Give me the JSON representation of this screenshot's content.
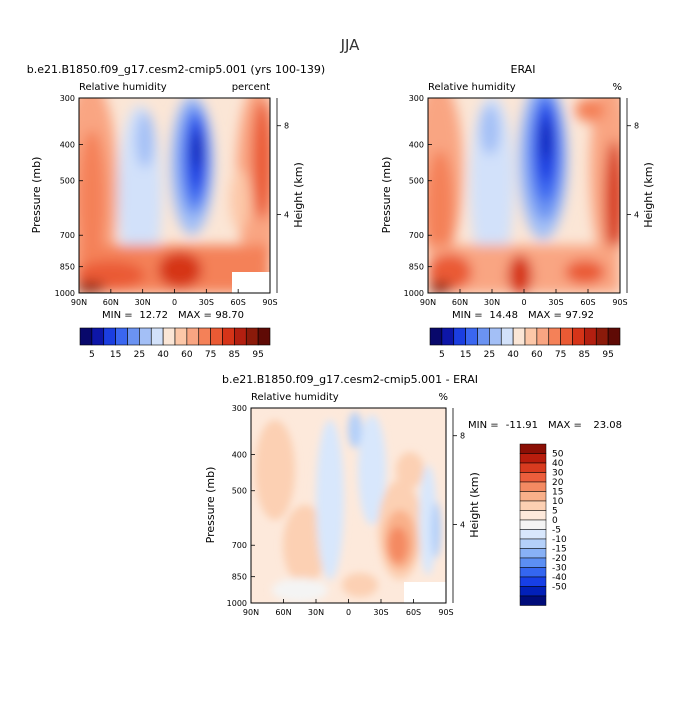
{
  "page": {
    "title": "JJA"
  },
  "colors": {
    "rh_scale": [
      "#08086b",
      "#0d16a8",
      "#1b3ee0",
      "#3a66f0",
      "#6b93f2",
      "#a3bff6",
      "#d2e1fa",
      "#fbe6d6",
      "#fcc7a8",
      "#f9a582",
      "#f48158",
      "#ea5a34",
      "#d63418",
      "#b31f10",
      "#8b1a0a",
      "#5f0a05"
    ],
    "diff_scale": [
      "#000c7a",
      "#0220b8",
      "#173fe6",
      "#3466f0",
      "#5c8ff3",
      "#88b1f6",
      "#b4d0f9",
      "#d8e7fc",
      "#f4f4f4",
      "#fde9db",
      "#fcd0b3",
      "#f9b08a",
      "#f48a62",
      "#ec5e3c",
      "#d83b1f",
      "#b81d0d",
      "#8b0f05"
    ]
  },
  "chart_data": [
    {
      "type": "heatmap",
      "panel": "model",
      "title": "b.e21.B1850.f09_g17.cesm2-cmip5.001 (yrs 100-139)",
      "left_label": "Relative humidity",
      "right_label": "percent",
      "xlabel": "",
      "ylabel": "Pressure (mb)",
      "ylabel_right": "Height (km)",
      "xticks": [
        "90N",
        "60N",
        "30N",
        "0",
        "30S",
        "60S",
        "90S"
      ],
      "yticks": [
        "300",
        "400",
        "500",
        "700",
        "850",
        "1000"
      ],
      "yticks_right": [
        "8",
        "4"
      ],
      "xlim": [
        90,
        -90
      ],
      "ylim": [
        1000,
        300
      ],
      "min_label": "MIN =",
      "min": "12.72",
      "max_label": "MAX =",
      "max": "98.70",
      "levels": [
        "5",
        "15",
        "25",
        "40",
        "60",
        "75",
        "85",
        "95"
      ]
    },
    {
      "type": "heatmap",
      "panel": "obs",
      "title": "ERAI",
      "left_label": "Relative humidity",
      "right_label": "%",
      "xlabel": "",
      "ylabel": "Pressure (mb)",
      "ylabel_right": "Height (km)",
      "xticks": [
        "90N",
        "60N",
        "30N",
        "0",
        "30S",
        "60S",
        "90S"
      ],
      "yticks": [
        "300",
        "400",
        "500",
        "700",
        "850",
        "1000"
      ],
      "yticks_right": [
        "8",
        "4"
      ],
      "xlim": [
        90,
        -90
      ],
      "ylim": [
        1000,
        300
      ],
      "min_label": "MIN =",
      "min": "14.48",
      "max_label": "MAX =",
      "max": "97.92",
      "levels": [
        "5",
        "15",
        "25",
        "40",
        "60",
        "75",
        "85",
        "95"
      ]
    },
    {
      "type": "heatmap",
      "panel": "difference",
      "title": "b.e21.B1850.f09_g17.cesm2-cmip5.001 - ERAI",
      "left_label": "Relative humidity",
      "right_label": "%",
      "xlabel": "",
      "ylabel": "Pressure (mb)",
      "ylabel_right": "Height (km)",
      "xticks": [
        "90N",
        "60N",
        "30N",
        "0",
        "30S",
        "60S",
        "90S"
      ],
      "yticks": [
        "300",
        "400",
        "500",
        "700",
        "850",
        "1000"
      ],
      "yticks_right": [
        "8",
        "4"
      ],
      "xlim": [
        90,
        -90
      ],
      "ylim": [
        1000,
        300
      ],
      "min_label": "MIN =",
      "min": "-11.91",
      "max_label": "MAX =",
      "max": "23.08",
      "levels": [
        "50",
        "40",
        "30",
        "20",
        "15",
        "10",
        "5",
        "0",
        "-5",
        "-10",
        "-15",
        "-20",
        "-30",
        "-40",
        "-50"
      ]
    }
  ]
}
